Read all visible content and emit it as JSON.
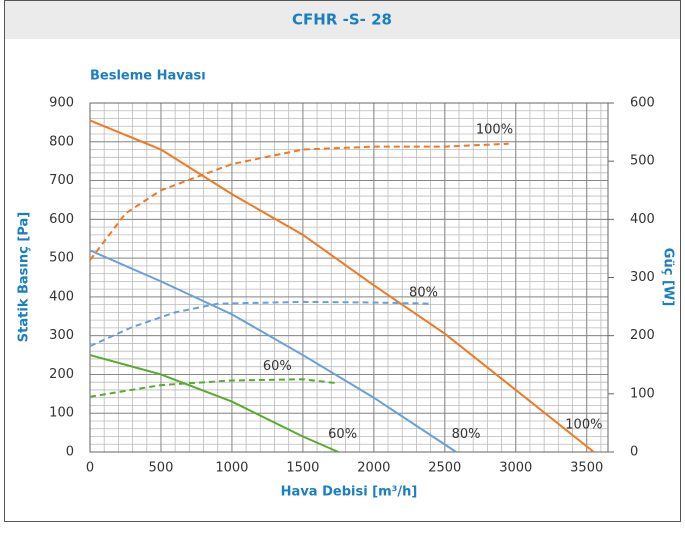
{
  "chart_data": {
    "type": "line",
    "title": "CFHR -S- 28",
    "subtitle": "Besleme Havası",
    "xlabel": "Hava Debisi [m³/h]",
    "ylabel": "Statik Basınç [Pa]",
    "y2label": "Güç [W]",
    "xlim": [
      0,
      3650
    ],
    "xticks": [
      0,
      500,
      1000,
      1500,
      2000,
      2500,
      3000,
      3500
    ],
    "ylim": [
      0,
      900
    ],
    "yticks": [
      0,
      100,
      200,
      300,
      400,
      500,
      600,
      700,
      800,
      900
    ],
    "y2lim": [
      0,
      600
    ],
    "y2ticks": [
      0,
      100,
      200,
      300,
      400,
      500,
      600
    ],
    "grid": true,
    "minor_grid_step": [
      100,
      20
    ],
    "series": [
      {
        "name": "100%",
        "color": "#f07a22",
        "dash": false,
        "x": [
          0,
          500,
          1000,
          1500,
          2000,
          2500,
          3000,
          3550
        ],
        "values": [
          855,
          780,
          665,
          560,
          430,
          305,
          160,
          0
        ]
      },
      {
        "name": "100%",
        "color": "#f07a22",
        "dash": true,
        "axis": "y2",
        "x": [
          0,
          250,
          500,
          1000,
          1500,
          2000,
          2500,
          2950
        ],
        "values": [
          330,
          410,
          450,
          495,
          520,
          525,
          525,
          530
        ]
      },
      {
        "name": "80%",
        "color": "#6a9fd8",
        "dash": false,
        "x": [
          0,
          500,
          1000,
          1500,
          2000,
          2580
        ],
        "values": [
          520,
          440,
          355,
          250,
          140,
          0
        ]
      },
      {
        "name": "80%",
        "color": "#6a9fd8",
        "dash": true,
        "axis": "y2",
        "x": [
          0,
          300,
          600,
          900,
          1500,
          2000,
          2400
        ],
        "values": [
          182,
          215,
          240,
          255,
          258,
          257,
          255
        ]
      },
      {
        "name": "60%",
        "color": "#5aaa32",
        "dash": false,
        "x": [
          0,
          500,
          1000,
          1500,
          1750
        ],
        "values": [
          250,
          200,
          130,
          40,
          0
        ]
      },
      {
        "name": "60%",
        "color": "#5aaa32",
        "dash": true,
        "axis": "y2",
        "x": [
          0,
          500,
          1000,
          1500,
          1750
        ],
        "values": [
          95,
          115,
          123,
          125,
          118
        ]
      }
    ],
    "annotations": [
      {
        "text": "100%",
        "x": 2850,
        "y": 830
      },
      {
        "text": "80%",
        "x": 2350,
        "y": 410
      },
      {
        "text": "60%",
        "x": 1320,
        "y": 220
      },
      {
        "text": "100%",
        "x": 3480,
        "y": 70
      },
      {
        "text": "80%",
        "x": 2650,
        "y": 45
      },
      {
        "text": "60%",
        "x": 1780,
        "y": 45
      }
    ]
  }
}
